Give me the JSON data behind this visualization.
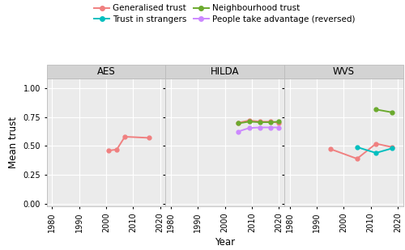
{
  "panels": [
    "AES",
    "HILDA",
    "WVS"
  ],
  "series": {
    "generalised_trust": {
      "label": "Generalised trust",
      "color": "#F08080",
      "marker": "o",
      "data": {
        "AES": {
          "x": [
            2001,
            2004,
            2007,
            2016
          ],
          "y": [
            0.46,
            0.47,
            0.58,
            0.57
          ]
        },
        "HILDA": {
          "x": [
            2005,
            2009,
            2013,
            2017,
            2020
          ],
          "y": [
            0.7,
            0.72,
            0.71,
            0.71,
            0.7
          ]
        },
        "WVS": {
          "x": [
            1995,
            2005,
            2012,
            2018
          ],
          "y": [
            0.475,
            0.39,
            0.52,
            0.49
          ]
        }
      }
    },
    "trust_in_strangers": {
      "label": "Trust in strangers",
      "color": "#00BFBF",
      "marker": "o",
      "data": {
        "AES": {
          "x": [],
          "y": []
        },
        "HILDA": {
          "x": [],
          "y": []
        },
        "WVS": {
          "x": [
            2005,
            2012,
            2018
          ],
          "y": [
            0.49,
            0.44,
            0.48
          ]
        }
      }
    },
    "neighbourhood_trust": {
      "label": "Neighbourhood trust",
      "color": "#6BAA2E",
      "marker": "o",
      "data": {
        "AES": {
          "x": [],
          "y": []
        },
        "HILDA": {
          "x": [
            2005,
            2009,
            2013,
            2017,
            2020
          ],
          "y": [
            0.695,
            0.71,
            0.705,
            0.705,
            0.71
          ]
        },
        "WVS": {
          "x": [
            2012,
            2018
          ],
          "y": [
            0.815,
            0.79
          ]
        }
      }
    },
    "people_take_advantage": {
      "label": "People take advantage (reversed)",
      "color": "#CC88FF",
      "marker": "o",
      "data": {
        "AES": {
          "x": [],
          "y": []
        },
        "HILDA": {
          "x": [
            2005,
            2009,
            2013,
            2017,
            2020
          ],
          "y": [
            0.625,
            0.655,
            0.66,
            0.66,
            0.66
          ]
        },
        "WVS": {
          "x": [],
          "y": []
        }
      }
    }
  },
  "xlim": [
    1978,
    2022
  ],
  "ylim": [
    -0.02,
    1.08
  ],
  "yticks": [
    0.0,
    0.25,
    0.5,
    0.75,
    1.0
  ],
  "xticks": [
    1980,
    1990,
    2000,
    2010,
    2020
  ],
  "ylabel": "Mean trust",
  "xlabel": "Year",
  "panel_header_bg": "#D3D3D3",
  "panel_bg": "#EBEBEB",
  "grid_color": "#FFFFFF",
  "linewidth": 1.4,
  "markersize": 3.5,
  "legend_fontsize": 7.5,
  "axis_fontsize": 8.5,
  "tick_fontsize": 7,
  "panel_title_fontsize": 8.5
}
